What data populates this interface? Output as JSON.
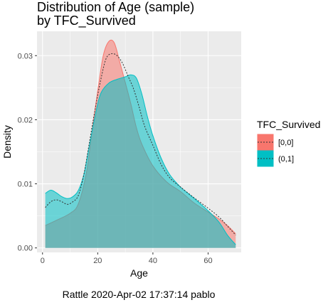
{
  "chart_data": {
    "type": "area",
    "title_lines": [
      "Distribution of Age (sample)",
      "by TFC_Survived"
    ],
    "xlabel": "Age",
    "ylabel": "Density",
    "xlim": [
      -2,
      72
    ],
    "ylim": [
      -0.0007,
      0.0338
    ],
    "x_ticks": [
      0,
      20,
      40,
      60
    ],
    "x_tick_labels": [
      "0",
      "20",
      "40",
      "60"
    ],
    "y_ticks": [
      0.0,
      0.01,
      0.02,
      0.03
    ],
    "y_tick_labels": [
      "0.00",
      "0.01",
      "0.02",
      "0.03"
    ],
    "grid": true,
    "legend": {
      "title": "TFC_Survived",
      "position": "right",
      "entries": [
        "[0,0]",
        "(0,1]"
      ]
    },
    "series": [
      {
        "name": "[0,0]",
        "color": "#F8766D",
        "fill_opacity": 0.55,
        "points": [
          [
            1,
            0.0035
          ],
          [
            5,
            0.0043
          ],
          [
            10,
            0.0054
          ],
          [
            13,
            0.0069
          ],
          [
            16,
            0.012
          ],
          [
            18,
            0.0185
          ],
          [
            20,
            0.0245
          ],
          [
            22,
            0.03
          ],
          [
            24,
            0.0322
          ],
          [
            26,
            0.032
          ],
          [
            28,
            0.029
          ],
          [
            30,
            0.0258
          ],
          [
            32,
            0.0225
          ],
          [
            34,
            0.0188
          ],
          [
            36,
            0.0162
          ],
          [
            40,
            0.0128
          ],
          [
            45,
            0.0103
          ],
          [
            50,
            0.0088
          ],
          [
            55,
            0.007
          ],
          [
            60,
            0.0056
          ],
          [
            64,
            0.0045
          ],
          [
            67,
            0.0035
          ],
          [
            70,
            0.0022
          ]
        ]
      },
      {
        "name": "(0,1]",
        "color": "#00BFC4",
        "fill_opacity": 0.55,
        "points": [
          [
            1,
            0.0085
          ],
          [
            3,
            0.009
          ],
          [
            5,
            0.0086
          ],
          [
            7,
            0.008
          ],
          [
            9,
            0.0077
          ],
          [
            11,
            0.008
          ],
          [
            13,
            0.009
          ],
          [
            15,
            0.0115
          ],
          [
            17,
            0.016
          ],
          [
            19,
            0.0205
          ],
          [
            21,
            0.024
          ],
          [
            24,
            0.0257
          ],
          [
            27,
            0.0263
          ],
          [
            30,
            0.0267
          ],
          [
            32,
            0.027
          ],
          [
            34,
            0.0265
          ],
          [
            36,
            0.024
          ],
          [
            38,
            0.0205
          ],
          [
            40,
            0.0175
          ],
          [
            43,
            0.014
          ],
          [
            46,
            0.0115
          ],
          [
            50,
            0.0095
          ],
          [
            55,
            0.0077
          ],
          [
            60,
            0.0058
          ],
          [
            64,
            0.004
          ],
          [
            67,
            0.002
          ],
          [
            70,
            0.0005
          ]
        ]
      }
    ],
    "overall": {
      "line_style": "dotted",
      "points": [
        [
          1,
          0.0063
        ],
        [
          3,
          0.0072
        ],
        [
          5,
          0.0075
        ],
        [
          7,
          0.0072
        ],
        [
          9,
          0.0068
        ],
        [
          11,
          0.0072
        ],
        [
          13,
          0.0082
        ],
        [
          15,
          0.0115
        ],
        [
          17,
          0.0165
        ],
        [
          19,
          0.0215
        ],
        [
          21,
          0.026
        ],
        [
          23,
          0.0295
        ],
        [
          25,
          0.0303
        ],
        [
          27,
          0.03
        ],
        [
          29,
          0.0288
        ],
        [
          31,
          0.0268
        ],
        [
          33,
          0.0248
        ],
        [
          35,
          0.022
        ],
        [
          37,
          0.019
        ],
        [
          40,
          0.016
        ],
        [
          43,
          0.013
        ],
        [
          46,
          0.011
        ],
        [
          50,
          0.0095
        ],
        [
          55,
          0.0078
        ],
        [
          60,
          0.0062
        ],
        [
          64,
          0.0048
        ],
        [
          67,
          0.0034
        ],
        [
          70,
          0.002
        ]
      ]
    },
    "caption": "Rattle 2020-Apr-02 17:37:14 pablo"
  }
}
